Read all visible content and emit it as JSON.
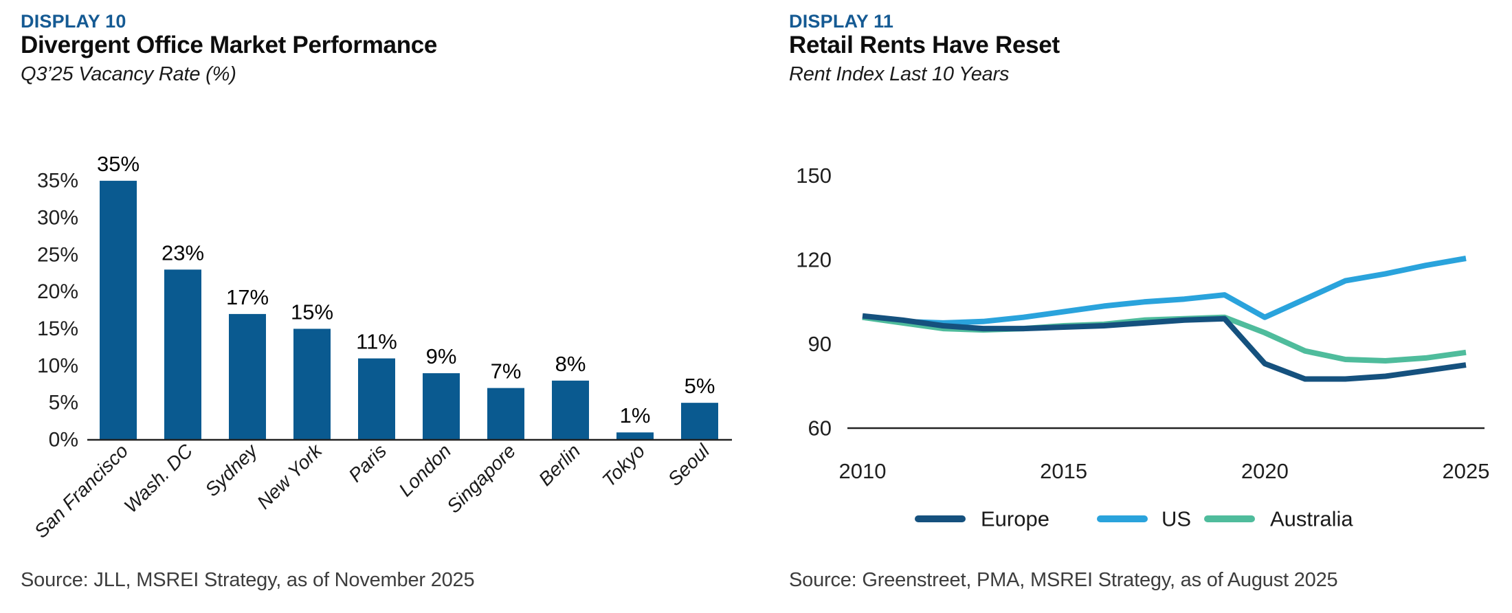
{
  "left": {
    "display_label": "DISPLAY 10",
    "title": "Divergent Office Market Performance",
    "subtitle": "Q3’25 Vacancy Rate (%)",
    "source": "Source: JLL, MSREI Strategy, as of November 2025"
  },
  "right": {
    "display_label": "DISPLAY 11",
    "title": "Retail Rents Have Reset",
    "subtitle": "Rent Index Last 10 Years",
    "source": "Source: Greenstreet, PMA, MSREI Strategy, as of August 2025"
  },
  "colors": {
    "display_label_blue": "#155A93",
    "bar_blue": "#0A5A90",
    "europe_navy": "#15517E",
    "us_blue": "#2AA3DC",
    "australia_green": "#4FBC9C",
    "axis_line": "#222222",
    "tick_text": "#1f1f1f"
  },
  "chart_data": [
    {
      "type": "bar",
      "title": "Divergent Office Market Performance",
      "subtitle": "Q3'25 Vacancy Rate (%)",
      "categories": [
        "San Francisco",
        "Wash. DC",
        "Sydney",
        "New York",
        "Paris",
        "London",
        "Singapore",
        "Berlin",
        "Tokyo",
        "Seoul"
      ],
      "values": [
        35,
        23,
        17,
        15,
        11,
        9,
        7,
        8,
        1,
        5
      ],
      "bar_labels": [
        "35%",
        "23%",
        "17%",
        "15%",
        "11%",
        "9%",
        "7%",
        "8%",
        "1%",
        "5%"
      ],
      "ytick_labels": [
        "0%",
        "5%",
        "10%",
        "15%",
        "20%",
        "25%",
        "30%",
        "35%"
      ],
      "yticks": [
        0,
        5,
        10,
        15,
        20,
        25,
        30,
        35
      ],
      "ylim": [
        0,
        35
      ],
      "xlabel": "",
      "ylabel": "Q3'25 Vacancy Rate (%)",
      "grid": false,
      "bar_color": "#0A5A90",
      "legend_position": "none"
    },
    {
      "type": "line",
      "title": "Retail Rents Have Reset",
      "subtitle": "Rent Index Last 10 Years",
      "x": [
        2010,
        2011,
        2012,
        2013,
        2014,
        2015,
        2016,
        2017,
        2018,
        2019,
        2020,
        2021,
        2022,
        2023,
        2024,
        2025
      ],
      "xticks": [
        2010,
        2015,
        2020,
        2025
      ],
      "yticks": [
        60,
        90,
        120,
        150
      ],
      "ylim": [
        60,
        150
      ],
      "xlabel": "",
      "ylabel": "Rent Index",
      "grid": false,
      "legend_position": "bottom",
      "series": [
        {
          "name": "Europe",
          "color": "#15517E",
          "values": [
            100,
            98.5,
            96.5,
            95.5,
            95.5,
            96,
            96.5,
            97.5,
            98.5,
            99,
            83,
            77.5,
            77.5,
            78.5,
            80.5,
            82.5
          ]
        },
        {
          "name": "US",
          "color": "#2AA3DC",
          "values": [
            99.5,
            98,
            97.5,
            98,
            99.5,
            101.5,
            103.5,
            105,
            106,
            107.5,
            99.5,
            106,
            112.5,
            115,
            118,
            120.5
          ]
        },
        {
          "name": "Australia",
          "color": "#4FBC9C",
          "values": [
            99.5,
            97.5,
            95.5,
            95,
            95.5,
            96.5,
            97,
            98.5,
            99,
            99.5,
            94,
            87.5,
            84.5,
            84,
            85,
            87
          ]
        }
      ]
    }
  ]
}
